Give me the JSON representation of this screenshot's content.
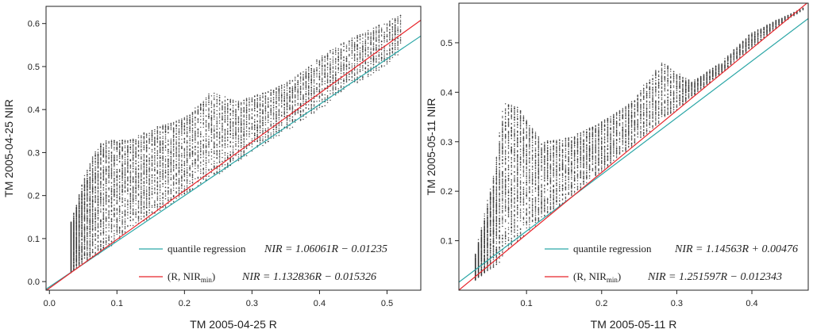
{
  "chart_data": [
    {
      "type": "scatter",
      "xlabel": "TM 2005-04-25 R",
      "ylabel": "TM 2005-04-25 NIR",
      "xlim": [
        -0.005,
        0.55
      ],
      "ylim": [
        -0.02,
        0.64
      ],
      "xticks": [
        "0.0",
        "0.1",
        "0.2",
        "0.3",
        "0.4",
        "0.5"
      ],
      "yticks": [
        "0.0",
        "0.1",
        "0.2",
        "0.3",
        "0.4",
        "0.5",
        "0.6"
      ],
      "lines": [
        {
          "name": "quantile regression",
          "slope": 1.06061,
          "intercept": -0.01235,
          "color": "#2aa6a6",
          "equation": "NIR = 1.06061R − 0.01235"
        },
        {
          "name": "(R, NIR_min)",
          "label_main": "(R, NIR",
          "label_sub": "min",
          "label_end": ")",
          "slope": 1.132836,
          "intercept": -0.015326,
          "color": "#e8242a",
          "equation": "NIR = 1.132836R − 0.015326"
        }
      ],
      "scatter_envelope": {
        "x": [
          0.03,
          0.06,
          0.08,
          0.12,
          0.16,
          0.2,
          0.24,
          0.28,
          0.32,
          0.36,
          0.4,
          0.44,
          0.48,
          0.52
        ],
        "upper": [
          0.12,
          0.28,
          0.33,
          0.33,
          0.36,
          0.38,
          0.44,
          0.42,
          0.44,
          0.47,
          0.52,
          0.56,
          0.59,
          0.62
        ],
        "lower": [
          0.02,
          0.05,
          0.07,
          0.12,
          0.16,
          0.2,
          0.24,
          0.28,
          0.32,
          0.36,
          0.4,
          0.45,
          0.48,
          0.53
        ]
      },
      "point_color": "#333333"
    },
    {
      "type": "scatter",
      "xlabel": "TM 2005-05-11 R",
      "ylabel": "TM 2005-05-11 NIR",
      "xlim": [
        0.01,
        0.475
      ],
      "ylim": [
        0.0,
        0.58
      ],
      "xticks": [
        "0.1",
        "0.2",
        "0.3",
        "0.4"
      ],
      "yticks": [
        "0.1",
        "0.2",
        "0.3",
        "0.4",
        "0.5"
      ],
      "lines": [
        {
          "name": "quantile regression",
          "slope": 1.14563,
          "intercept": 0.00476,
          "color": "#2aa6a6",
          "equation": "NIR = 1.14563R + 0.00476"
        },
        {
          "name": "(R, NIR_min)",
          "label_main": "(R, NIR",
          "label_sub": "min",
          "label_end": ")",
          "slope": 1.251597,
          "intercept": -0.012343,
          "color": "#e8242a",
          "equation": "NIR = 1.251597R − 0.012343"
        }
      ],
      "scatter_envelope": {
        "x": [
          0.03,
          0.06,
          0.07,
          0.09,
          0.12,
          0.16,
          0.2,
          0.24,
          0.28,
          0.32,
          0.36,
          0.4,
          0.44,
          0.47
        ],
        "upper": [
          0.05,
          0.25,
          0.38,
          0.37,
          0.3,
          0.31,
          0.34,
          0.38,
          0.46,
          0.42,
          0.46,
          0.52,
          0.55,
          0.57
        ],
        "lower": [
          0.02,
          0.05,
          0.07,
          0.1,
          0.14,
          0.19,
          0.24,
          0.29,
          0.34,
          0.39,
          0.44,
          0.49,
          0.54,
          0.57
        ]
      },
      "point_color": "#333333"
    }
  ]
}
